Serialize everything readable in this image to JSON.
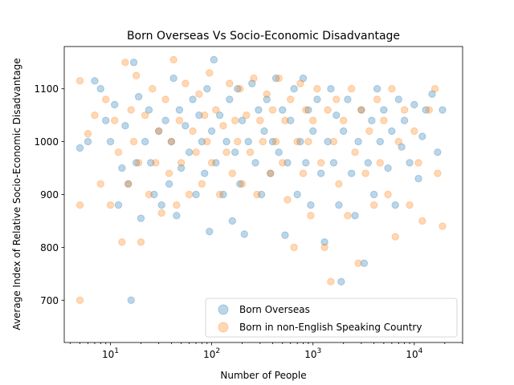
{
  "chart_data": {
    "type": "scatter",
    "title": "Born Overseas Vs Socio-Economic Disadvantage",
    "xlabel": "Number of People",
    "ylabel": "Average Index of Relative Socio-Economic Disadvantage",
    "xscale": "log",
    "xlim": [
      3.5,
      30000
    ],
    "ylim": [
      620,
      1180
    ],
    "x_ticks": [
      {
        "value": 10,
        "base": "10",
        "exp": "1"
      },
      {
        "value": 100,
        "base": "10",
        "exp": "2"
      },
      {
        "value": 1000,
        "base": "10",
        "exp": "3"
      },
      {
        "value": 10000,
        "base": "10",
        "exp": "4"
      }
    ],
    "y_ticks": [
      700,
      800,
      900,
      1000,
      1100
    ],
    "grid": false,
    "legend_position": "lower-right",
    "series": [
      {
        "name": "Born Overseas",
        "color": "#1f77b4",
        "points": [
          [
            5,
            988
          ],
          [
            6,
            1000
          ],
          [
            7,
            1115
          ],
          [
            8,
            1100
          ],
          [
            9,
            1040
          ],
          [
            10,
            1000
          ],
          [
            11,
            1070
          ],
          [
            12,
            880
          ],
          [
            13,
            950
          ],
          [
            14,
            1030
          ],
          [
            15,
            920
          ],
          [
            16,
            700
          ],
          [
            17,
            1150
          ],
          [
            18,
            960
          ],
          [
            19,
            1085
          ],
          [
            20,
            855
          ],
          [
            22,
            1000
          ],
          [
            24,
            1060
          ],
          [
            25,
            960
          ],
          [
            27,
            900
          ],
          [
            30,
            1020
          ],
          [
            32,
            880
          ],
          [
            35,
            1040
          ],
          [
            38,
            920
          ],
          [
            40,
            1000
          ],
          [
            42,
            1120
          ],
          [
            45,
            860
          ],
          [
            48,
            1060
          ],
          [
            50,
            950
          ],
          [
            55,
            1030
          ],
          [
            60,
            980
          ],
          [
            65,
            1080
          ],
          [
            70,
            900
          ],
          [
            75,
            1050
          ],
          [
            80,
            1000
          ],
          [
            85,
            940
          ],
          [
            90,
            1100
          ],
          [
            95,
            830
          ],
          [
            100,
            1020
          ],
          [
            105,
            1155
          ],
          [
            110,
            960
          ],
          [
            120,
            1050
          ],
          [
            130,
            900
          ],
          [
            140,
            1000
          ],
          [
            150,
            1080
          ],
          [
            160,
            850
          ],
          [
            170,
            980
          ],
          [
            180,
            1100
          ],
          [
            190,
            920
          ],
          [
            200,
            1040
          ],
          [
            210,
            825
          ],
          [
            230,
            1000
          ],
          [
            250,
            1110
          ],
          [
            270,
            960
          ],
          [
            290,
            1060
          ],
          [
            310,
            900
          ],
          [
            330,
            1020
          ],
          [
            350,
            1080
          ],
          [
            380,
            940
          ],
          [
            400,
            1000
          ],
          [
            430,
            1120
          ],
          [
            460,
            980
          ],
          [
            500,
            1060
          ],
          [
            530,
            823
          ],
          [
            560,
            960
          ],
          [
            600,
            1040
          ],
          [
            650,
            1100
          ],
          [
            700,
            900
          ],
          [
            750,
            1000
          ],
          [
            800,
            1120
          ],
          [
            850,
            960
          ],
          [
            900,
            1060
          ],
          [
            950,
            880
          ],
          [
            1000,
            1020
          ],
          [
            1100,
            1080
          ],
          [
            1200,
            940
          ],
          [
            1300,
            810
          ],
          [
            1400,
            1000
          ],
          [
            1500,
            1100
          ],
          [
            1600,
            960
          ],
          [
            1700,
            1050
          ],
          [
            1800,
            880
          ],
          [
            1900,
            735
          ],
          [
            2000,
            1020
          ],
          [
            2200,
            1080
          ],
          [
            2400,
            940
          ],
          [
            2600,
            860
          ],
          [
            2800,
            1000
          ],
          [
            3000,
            1060
          ],
          [
            3200,
            770
          ],
          [
            3500,
            960
          ],
          [
            3800,
            1040
          ],
          [
            4000,
            900
          ],
          [
            4300,
            1100
          ],
          [
            4600,
            1000
          ],
          [
            5000,
            1060
          ],
          [
            5500,
            950
          ],
          [
            6000,
            1020
          ],
          [
            6500,
            880
          ],
          [
            7000,
            1080
          ],
          [
            7500,
            990
          ],
          [
            8000,
            1040
          ],
          [
            9000,
            960
          ],
          [
            10000,
            1070
          ],
          [
            11000,
            930
          ],
          [
            12000,
            1010
          ],
          [
            13000,
            1060
          ],
          [
            15000,
            1090
          ],
          [
            17000,
            980
          ],
          [
            19000,
            1060
          ]
        ]
      },
      {
        "name": "Born in non-English Speaking Country",
        "color": "#ff7f0e",
        "points": [
          [
            5,
            700
          ],
          [
            5,
            1115
          ],
          [
            5,
            880
          ],
          [
            6,
            1015
          ],
          [
            7,
            1050
          ],
          [
            8,
            920
          ],
          [
            9,
            1080
          ],
          [
            10,
            880
          ],
          [
            11,
            1040
          ],
          [
            12,
            980
          ],
          [
            13,
            810
          ],
          [
            14,
            1150
          ],
          [
            15,
            920
          ],
          [
            16,
            1060
          ],
          [
            17,
            1000
          ],
          [
            18,
            1125
          ],
          [
            19,
            960
          ],
          [
            20,
            810
          ],
          [
            22,
            1050
          ],
          [
            24,
            900
          ],
          [
            26,
            1100
          ],
          [
            28,
            960
          ],
          [
            30,
            1020
          ],
          [
            32,
            865
          ],
          [
            35,
            1080
          ],
          [
            38,
            940
          ],
          [
            40,
            1000
          ],
          [
            42,
            1155
          ],
          [
            45,
            880
          ],
          [
            48,
            1040
          ],
          [
            50,
            960
          ],
          [
            55,
            1110
          ],
          [
            60,
            900
          ],
          [
            65,
            1020
          ],
          [
            70,
            980
          ],
          [
            75,
            1090
          ],
          [
            80,
            920
          ],
          [
            85,
            1050
          ],
          [
            90,
            1000
          ],
          [
            95,
            1130
          ],
          [
            100,
            960
          ],
          [
            110,
            1060
          ],
          [
            120,
            900
          ],
          [
            130,
            1030
          ],
          [
            140,
            980
          ],
          [
            150,
            1110
          ],
          [
            160,
            940
          ],
          [
            170,
            1040
          ],
          [
            180,
            1000
          ],
          [
            190,
            1100
          ],
          [
            200,
            920
          ],
          [
            220,
            1050
          ],
          [
            240,
            980
          ],
          [
            260,
            1120
          ],
          [
            280,
            900
          ],
          [
            300,
            1040
          ],
          [
            320,
            1000
          ],
          [
            350,
            1090
          ],
          [
            380,
            940
          ],
          [
            400,
            1060
          ],
          [
            430,
            1000
          ],
          [
            460,
            1120
          ],
          [
            500,
            960
          ],
          [
            530,
            1040
          ],
          [
            560,
            890
          ],
          [
            600,
            1080
          ],
          [
            650,
            800
          ],
          [
            700,
            1000
          ],
          [
            750,
            1110
          ],
          [
            800,
            940
          ],
          [
            850,
            1060
          ],
          [
            900,
            1000
          ],
          [
            950,
            860
          ],
          [
            1000,
            1040
          ],
          [
            1100,
            1100
          ],
          [
            1200,
            960
          ],
          [
            1300,
            800
          ],
          [
            1400,
            1060
          ],
          [
            1500,
            735
          ],
          [
            1600,
            1000
          ],
          [
            1700,
            1080
          ],
          [
            1800,
            920
          ],
          [
            2000,
            1040
          ],
          [
            2200,
            860
          ],
          [
            2400,
            1100
          ],
          [
            2600,
            980
          ],
          [
            2800,
            770
          ],
          [
            3000,
            1060
          ],
          [
            3300,
            940
          ],
          [
            3600,
            1020
          ],
          [
            4000,
            880
          ],
          [
            4300,
            1080
          ],
          [
            4600,
            960
          ],
          [
            5000,
            1040
          ],
          [
            5500,
            900
          ],
          [
            6000,
            1100
          ],
          [
            6500,
            820
          ],
          [
            7000,
            1000
          ],
          [
            8000,
            1060
          ],
          [
            9000,
            880
          ],
          [
            10000,
            1020
          ],
          [
            11000,
            960
          ],
          [
            12000,
            850
          ],
          [
            14000,
            1060
          ],
          [
            16000,
            1100
          ],
          [
            17000,
            940
          ],
          [
            19000,
            840
          ]
        ]
      }
    ]
  }
}
